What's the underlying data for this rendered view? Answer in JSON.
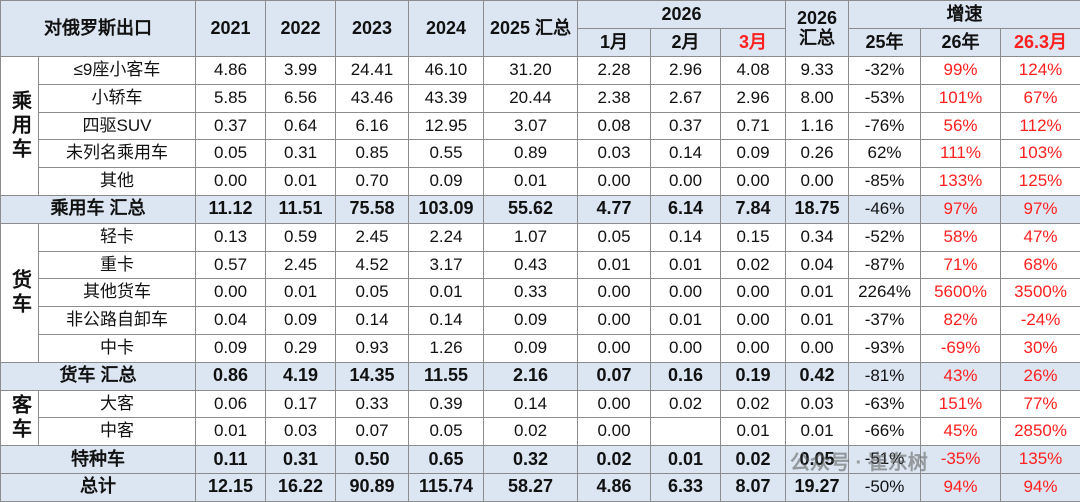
{
  "header": {
    "title": "对俄罗斯出口",
    "years": [
      "2021",
      "2022",
      "2023",
      "2024"
    ],
    "sum2025": "2025 汇总",
    "year2026": "2026",
    "months": [
      "1月",
      "2月",
      "3月"
    ],
    "sum2026": "2026 汇总",
    "growth": "增速",
    "growth_cols": [
      "25年",
      "26年",
      "26.3月"
    ]
  },
  "sections": [
    {
      "label": "乘用车",
      "rows": [
        {
          "name": "≤9座小客车",
          "cells": [
            "4.86",
            "3.99",
            "24.41",
            "46.10",
            "31.20",
            "2.28",
            "2.96",
            "4.08",
            "9.33",
            "-32%",
            "99%",
            "124%"
          ]
        },
        {
          "name": "小轿车",
          "cells": [
            "5.85",
            "6.56",
            "43.46",
            "43.39",
            "20.44",
            "2.38",
            "2.67",
            "2.96",
            "8.00",
            "-53%",
            "101%",
            "67%"
          ]
        },
        {
          "name": "四驱SUV",
          "cells": [
            "0.37",
            "0.64",
            "6.16",
            "12.95",
            "3.07",
            "0.08",
            "0.37",
            "0.71",
            "1.16",
            "-76%",
            "56%",
            "112%"
          ]
        },
        {
          "name": "未列名乘用车",
          "cells": [
            "0.05",
            "0.31",
            "0.85",
            "0.55",
            "0.89",
            "0.03",
            "0.14",
            "0.09",
            "0.26",
            "62%",
            "111%",
            "103%"
          ]
        },
        {
          "name": "其他",
          "cells": [
            "0.00",
            "0.01",
            "0.70",
            "0.09",
            "0.01",
            "0.00",
            "0.00",
            "0.00",
            "0.00",
            "-85%",
            "133%",
            "125%"
          ]
        }
      ],
      "summary": {
        "name": "乘用车 汇总",
        "cells": [
          "11.12",
          "11.51",
          "75.58",
          "103.09",
          "55.62",
          "4.77",
          "6.14",
          "7.84",
          "18.75",
          "-46%",
          "97%",
          "97%"
        ]
      }
    },
    {
      "label": "货车",
      "rows": [
        {
          "name": "轻卡",
          "cells": [
            "0.13",
            "0.59",
            "2.45",
            "2.24",
            "1.07",
            "0.05",
            "0.14",
            "0.15",
            "0.34",
            "-52%",
            "58%",
            "47%"
          ]
        },
        {
          "name": "重卡",
          "cells": [
            "0.57",
            "2.45",
            "4.52",
            "3.17",
            "0.43",
            "0.01",
            "0.01",
            "0.02",
            "0.04",
            "-87%",
            "71%",
            "68%"
          ]
        },
        {
          "name": "其他货车",
          "cells": [
            "0.00",
            "0.01",
            "0.05",
            "0.01",
            "0.33",
            "0.00",
            "0.00",
            "0.00",
            "0.01",
            "2264%",
            "5600%",
            "3500%"
          ]
        },
        {
          "name": "非公路自卸车",
          "cells": [
            "0.04",
            "0.09",
            "0.14",
            "0.14",
            "0.09",
            "0.00",
            "0.01",
            "0.00",
            "0.01",
            "-37%",
            "82%",
            "-24%"
          ]
        },
        {
          "name": "中卡",
          "cells": [
            "0.09",
            "0.29",
            "0.93",
            "1.26",
            "0.09",
            "0.00",
            "0.00",
            "0.00",
            "0.00",
            "-93%",
            "-69%",
            "30%"
          ]
        }
      ],
      "summary": {
        "name": "货车 汇总",
        "cells": [
          "0.86",
          "4.19",
          "14.35",
          "11.55",
          "2.16",
          "0.07",
          "0.16",
          "0.19",
          "0.42",
          "-81%",
          "43%",
          "26%"
        ]
      }
    },
    {
      "label": "客车",
      "rows": [
        {
          "name": "大客",
          "cells": [
            "0.06",
            "0.17",
            "0.33",
            "0.39",
            "0.14",
            "0.00",
            "0.02",
            "0.02",
            "0.03",
            "-63%",
            "151%",
            "77%"
          ]
        },
        {
          "name": "中客",
          "cells": [
            "0.01",
            "0.03",
            "0.07",
            "0.05",
            "0.02",
            "0.00",
            null,
            "0.01",
            "0.01",
            "-66%",
            "45%",
            "2850%"
          ]
        }
      ]
    }
  ],
  "special": {
    "name": "特种车",
    "cells": [
      "0.11",
      "0.31",
      "0.50",
      "0.65",
      "0.32",
      "0.02",
      "0.01",
      "0.02",
      "0.05",
      "-51%",
      "-35%",
      "135%"
    ]
  },
  "total": {
    "name": "总计",
    "cells": [
      "12.15",
      "16.22",
      "90.89",
      "115.74",
      "58.27",
      "4.86",
      "6.33",
      "8.07",
      "19.27",
      "-50%",
      "94%",
      "94%"
    ]
  },
  "watermark": "公众号 · 崔东树"
}
